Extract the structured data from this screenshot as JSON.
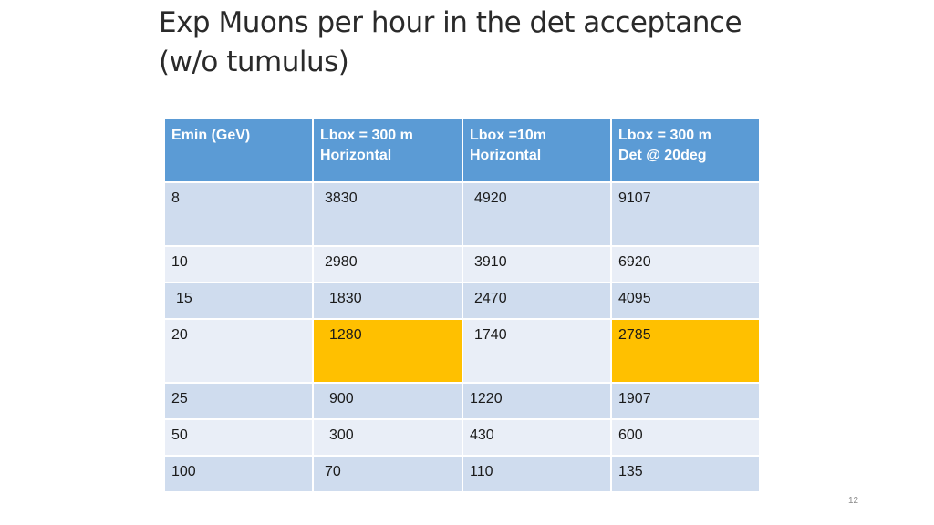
{
  "title": "Exp Muons per hour in the det acceptance (w/o tumulus)",
  "table": {
    "headers": [
      {
        "line1": "Emin (GeV)",
        "line2": ""
      },
      {
        "line1": "Lbox = 300 m",
        "line2": "Horizontal"
      },
      {
        "line1": "Lbox =10m",
        "line2": "Horizontal"
      },
      {
        "line1": "Lbox = 300 m",
        "line2": "Det @ 20deg"
      }
    ],
    "rows": [
      [
        "8",
        "3830",
        "4920",
        "9107"
      ],
      [
        "10",
        "2980",
        "3910",
        "6920"
      ],
      [
        "15",
        "1830",
        "2470",
        "4095"
      ],
      [
        "20",
        "1280",
        "1740",
        "2785"
      ],
      [
        "25",
        "900",
        "1220",
        "1907"
      ],
      [
        "50",
        "300",
        "430",
        "600"
      ],
      [
        "100",
        "70",
        "110",
        "135"
      ]
    ],
    "highlight_color": "#ffc000"
  },
  "page_number": "12"
}
